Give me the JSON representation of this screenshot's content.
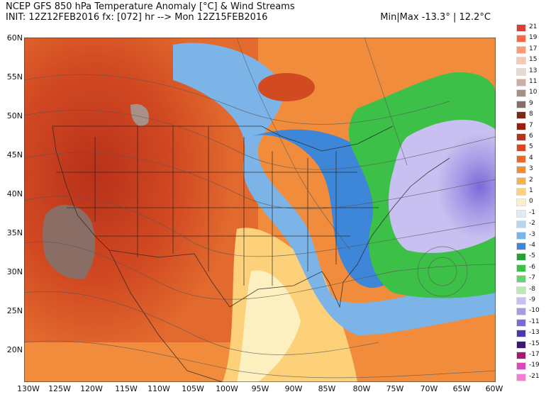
{
  "header": {
    "line1": "NCEP GFS 850 hPa Temperature Anomaly [°C] & Wind Streams",
    "line2": "INIT: 12Z12FEB2016 fx: [072] hr --> Mon 12Z15FEB2016",
    "minmax": "Min|Max -13.3° | 12.2°C"
  },
  "axes": {
    "lat_labels": [
      "60N",
      "55N",
      "50N",
      "45N",
      "40N",
      "35N",
      "30N",
      "25N",
      "20N"
    ],
    "lon_labels": [
      "130W",
      "125W",
      "120W",
      "115W",
      "110W",
      "105W",
      "100W",
      "95W",
      "90W",
      "85W",
      "80W",
      "75W",
      "70W",
      "65W",
      "60W"
    ]
  },
  "legend": {
    "labels": [
      "21",
      "19",
      "17",
      "15",
      "13",
      "11",
      "10",
      "9",
      "8",
      "7",
      "6",
      "5",
      "4",
      "3",
      "2",
      "1",
      "0",
      "-1",
      "-2",
      "-3",
      "-4",
      "-5",
      "-6",
      "-7",
      "-8",
      "-9",
      "-10",
      "-11",
      "-13",
      "-15",
      "-17",
      "-19",
      "-21"
    ],
    "colors": [
      "#e23a3a",
      "#f26a4a",
      "#f99a7a",
      "#fbc6b0",
      "#e8d8d0",
      "#c8b0a8",
      "#a89088",
      "#8a6e66",
      "#7a2a1a",
      "#941f10",
      "#b8311a",
      "#d24a22",
      "#e26a2e",
      "#f08c3c",
      "#f8ae52",
      "#fdd07a",
      "#fdf0c0",
      "#dcecf8",
      "#b4d6f2",
      "#7cb4e8",
      "#3e86d8",
      "#2a9c3a",
      "#3cc048",
      "#66d46a",
      "#bce8b8",
      "#c8c0f0",
      "#a89ae6",
      "#7a6ad8",
      "#4a3aa6",
      "#3a1870",
      "#a01a7a",
      "#d84ab8",
      "#f080d0"
    ]
  }
}
